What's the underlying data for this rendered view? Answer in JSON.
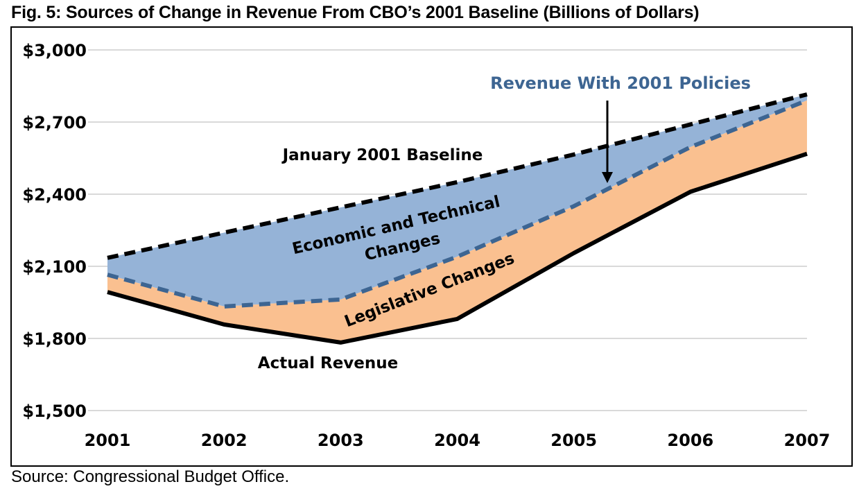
{
  "page": {
    "title": "Fig. 5: Sources of Change in Revenue From CBO’s 2001 Baseline (Billions of Dollars)",
    "source": "Source: Congressional Budget Office."
  },
  "chart_data": {
    "type": "area",
    "title": "Fig. 5: Sources of Change in Revenue From CBO’s 2001 Baseline (Billions of Dollars)",
    "xlabel": "",
    "ylabel": "",
    "x": [
      "2001",
      "2002",
      "2003",
      "2004",
      "2005",
      "2006",
      "2007"
    ],
    "ylim": [
      1500,
      3000
    ],
    "yticks": [
      1500,
      1800,
      2100,
      2400,
      2700,
      3000
    ],
    "ytick_labels": [
      "$1,500",
      "$1,800",
      "$2,100",
      "$2,400",
      "$2,700",
      "$3,000"
    ],
    "grid": "horizontal",
    "legend": "none (inline annotations)",
    "series": [
      {
        "name": "January 2001 Baseline",
        "style": "black dashed line",
        "color": "#000000",
        "values": [
          2135,
          2240,
          2345,
          2450,
          2565,
          2690,
          2815
        ]
      },
      {
        "name": "Revenue With 2001 Policies",
        "style": "blue dashed line",
        "color": "#3d6592",
        "values": [
          2065,
          1933,
          1962,
          2140,
          2350,
          2596,
          2790
        ]
      },
      {
        "name": "Actual Revenue",
        "style": "black solid line",
        "color": "#000000",
        "values": [
          1993,
          1858,
          1783,
          1881,
          2155,
          2410,
          2568
        ]
      }
    ],
    "bands": [
      {
        "name": "Economic and Technical Changes",
        "between": [
          "January 2001 Baseline",
          "Revenue With 2001 Policies"
        ],
        "color": "#95b3d7"
      },
      {
        "name": "Legislative Changes",
        "between": [
          "Revenue With 2001 Policies",
          "Actual Revenue"
        ],
        "color": "#fac090"
      }
    ],
    "annotations": {
      "baseline": "January 2001 Baseline",
      "econ_line1": "Economic and Technical",
      "econ_line2": "Changes",
      "legislative": "Legislative Changes",
      "actual": "Actual Revenue",
      "policies": "Revenue With 2001 Policies"
    }
  }
}
